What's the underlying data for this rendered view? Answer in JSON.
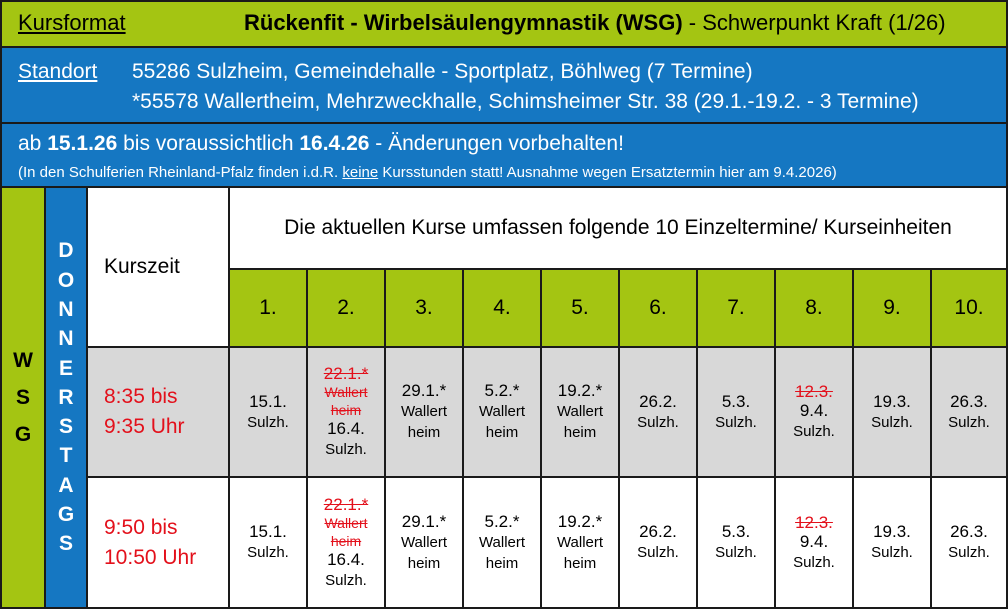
{
  "header": {
    "kursformat_label": "Kursformat",
    "title_bold": "Rückenfit - Wirbelsäulengymnastik (WSG)",
    "title_rest": " - Schwerpunkt Kraft (1/26)"
  },
  "standort": {
    "label": "Standort",
    "line1": "55286 Sulzheim, Gemeindehalle - Sportplatz, Böhlweg (7 Termine)",
    "line2": "*55578 Wallertheim, Mehrzweckhalle, Schimsheimer Str. 38 (29.1.-19.2. - 3 Termine)"
  },
  "period": {
    "prefix": "ab ",
    "start": "15.1.26",
    "middle": " bis voraussichtlich ",
    "end": "16.4.26",
    "suffix": " - Änderungen vorbehalten!",
    "note_before": "(In den Schulferien Rheinland-Pfalz finden i.d.R. ",
    "note_underlined": "keine",
    "note_after": " Kursstunden statt! Ausnahme wegen Ersatztermin hier am 9.4.2026)"
  },
  "table": {
    "group_label": [
      "W",
      "S",
      "G"
    ],
    "day_label": [
      "D",
      "O",
      "N",
      "N",
      "E",
      "R",
      "S",
      "T",
      "A",
      "G",
      "S"
    ],
    "kurszeit_label": "Kurszeit",
    "header": "Die aktuellen Kurse umfassen folgende 10 Einzeltermine/ Kurseinheiten",
    "numbers": [
      "1.",
      "2.",
      "3.",
      "4.",
      "5.",
      "6.",
      "7.",
      "8.",
      "9.",
      "10."
    ],
    "rows": [
      {
        "time_line1": "8:35 bis",
        "time_line2": "9:35 Uhr",
        "cells": [
          {
            "date": "15.1.",
            "place": "Sulzh."
          },
          {
            "cancel_date": "22.1.*",
            "cancel_place": "Wallert heim",
            "date": "16.4.",
            "place": "Sulzh."
          },
          {
            "date": "29.1.*",
            "place": "Wallert heim"
          },
          {
            "date": "5.2.*",
            "place": "Wallert heim"
          },
          {
            "date": "19.2.*",
            "place": "Wallert heim"
          },
          {
            "date": "26.2.",
            "place": "Sulzh."
          },
          {
            "date": "5.3.",
            "place": "Sulzh."
          },
          {
            "cancel_date": "12.3.",
            "date": "9.4.",
            "place": "Sulzh."
          },
          {
            "date": "19.3.",
            "place": "Sulzh."
          },
          {
            "date": "26.3.",
            "place": "Sulzh."
          }
        ]
      },
      {
        "time_line1": "9:50 bis",
        "time_line2": "10:50 Uhr",
        "cells": [
          {
            "date": "15.1.",
            "place": "Sulzh."
          },
          {
            "cancel_date": "22.1.*",
            "cancel_place": "Wallert heim",
            "date": "16.4.",
            "place": "Sulzh."
          },
          {
            "date": "29.1.*",
            "place": "Wallert heim"
          },
          {
            "date": "5.2.*",
            "place": "Wallert heim"
          },
          {
            "date": "19.2.*",
            "place": "Wallert heim"
          },
          {
            "date": "26.2.",
            "place": "Sulzh."
          },
          {
            "date": "5.3.",
            "place": "Sulzh."
          },
          {
            "cancel_date": "12.3.",
            "date": "9.4.",
            "place": "Sulzh."
          },
          {
            "date": "19.3.",
            "place": "Sulzh."
          },
          {
            "date": "26.3.",
            "place": "Sulzh."
          }
        ]
      }
    ]
  },
  "colors": {
    "green": "#a4c512",
    "blue": "#1577c2",
    "gray": "#d8d8d8",
    "red": "#e3101b"
  }
}
